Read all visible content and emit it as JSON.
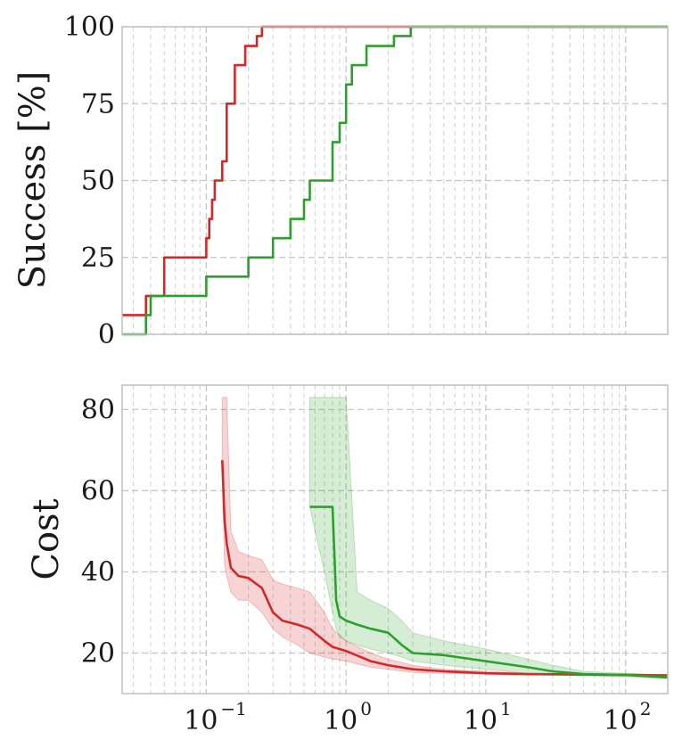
{
  "chart_data": [
    {
      "type": "line",
      "ylabel": "Success [%]",
      "xscale": "log",
      "xlim": [
        0.025,
        200
      ],
      "ylim": [
        0,
        100
      ],
      "yticks": [
        0,
        25,
        50,
        75,
        100
      ],
      "grid": true,
      "series": [
        {
          "color": "#d62728",
          "x": [
            0.025,
            0.037,
            0.037,
            0.05,
            0.05,
            0.1,
            0.1,
            0.105,
            0.105,
            0.11,
            0.11,
            0.115,
            0.115,
            0.13,
            0.13,
            0.14,
            0.14,
            0.16,
            0.16,
            0.19,
            0.19,
            0.23,
            0.23,
            0.25,
            0.25,
            200
          ],
          "y": [
            6.25,
            6.25,
            12.5,
            12.5,
            25,
            25,
            31.25,
            31.25,
            37.5,
            37.5,
            43.75,
            43.75,
            50,
            50,
            56.25,
            56.25,
            75,
            75,
            87.5,
            87.5,
            93.75,
            93.75,
            97,
            97,
            100,
            100
          ]
        },
        {
          "color": "#2ca02c",
          "x": [
            0.025,
            0.037,
            0.037,
            0.04,
            0.04,
            0.05,
            0.05,
            0.1,
            0.1,
            0.2,
            0.2,
            0.3,
            0.3,
            0.4,
            0.4,
            0.5,
            0.5,
            0.55,
            0.55,
            0.8,
            0.8,
            0.9,
            0.9,
            1.0,
            1.0,
            1.1,
            1.1,
            1.4,
            1.4,
            2.2,
            2.2,
            2.9,
            2.9,
            200
          ],
          "y": [
            0,
            0,
            6.25,
            6.25,
            12.5,
            12.5,
            12.5,
            12.5,
            18.75,
            18.75,
            25,
            25,
            31.25,
            31.25,
            37.5,
            37.5,
            43.75,
            43.75,
            50,
            50,
            62.5,
            62.5,
            68.75,
            68.75,
            81.25,
            81.25,
            87.5,
            87.5,
            93.75,
            93.75,
            97,
            97,
            100,
            100
          ]
        }
      ]
    },
    {
      "type": "area",
      "ylabel": "Cost",
      "xscale": "log",
      "xlim": [
        0.025,
        200
      ],
      "ylim": [
        10,
        86
      ],
      "yticks": [
        20,
        40,
        60,
        80
      ],
      "xtick_labels": [
        "10",
        "10",
        "10",
        "10"
      ],
      "xtick_exponents": [
        "−1",
        "0",
        "1",
        "2"
      ],
      "xtick_values": [
        0.1,
        1,
        10,
        100
      ],
      "grid": true,
      "series": [
        {
          "color": "#d62728",
          "x": [
            0.13,
            0.135,
            0.14,
            0.15,
            0.17,
            0.2,
            0.25,
            0.3,
            0.35,
            0.45,
            0.55,
            0.7,
            0.8,
            1.0,
            1.5,
            2.0,
            3.0,
            5.0,
            10,
            20,
            50,
            100,
            200
          ],
          "y": [
            67.5,
            53,
            47,
            41,
            39,
            38.5,
            36,
            30,
            28,
            27,
            26,
            23,
            21.5,
            20.5,
            18,
            17,
            16,
            15.5,
            15,
            14.8,
            14.7,
            14.6,
            14.5
          ],
          "lower": [
            67,
            42,
            39,
            35,
            33,
            33,
            30,
            26,
            24,
            22,
            20,
            19,
            18.5,
            18,
            16.5,
            16,
            15.2,
            15,
            14.8,
            14.6,
            14.5,
            14.4,
            14.3
          ],
          "upper": [
            83,
            83,
            83,
            50,
            45,
            44,
            43,
            38,
            37,
            36,
            35,
            30,
            26,
            23,
            20,
            18.5,
            17,
            16,
            15.5,
            15,
            14.9,
            14.8,
            14.7
          ]
        },
        {
          "color": "#2ca02c",
          "x": [
            0.55,
            0.6,
            0.7,
            0.8,
            0.85,
            0.9,
            1.0,
            1.2,
            1.5,
            2.0,
            2.5,
            3.0,
            5.0,
            10,
            20,
            30,
            50,
            100,
            200
          ],
          "y": [
            56,
            56,
            56,
            56,
            33,
            29,
            28,
            27,
            26,
            25,
            22,
            20,
            19.5,
            18,
            16.5,
            15.5,
            14.8,
            14.6,
            14
          ],
          "lower": [
            56,
            50,
            40,
            30,
            26,
            24,
            23,
            22,
            21,
            20,
            19,
            18,
            17,
            16,
            15,
            14.7,
            14.4,
            14.2,
            13.7
          ],
          "upper": [
            83,
            83,
            83,
            83,
            83,
            83,
            83,
            35,
            33,
            31,
            28,
            25,
            23,
            21,
            18.5,
            17,
            15.5,
            15,
            14.5
          ]
        }
      ]
    }
  ]
}
